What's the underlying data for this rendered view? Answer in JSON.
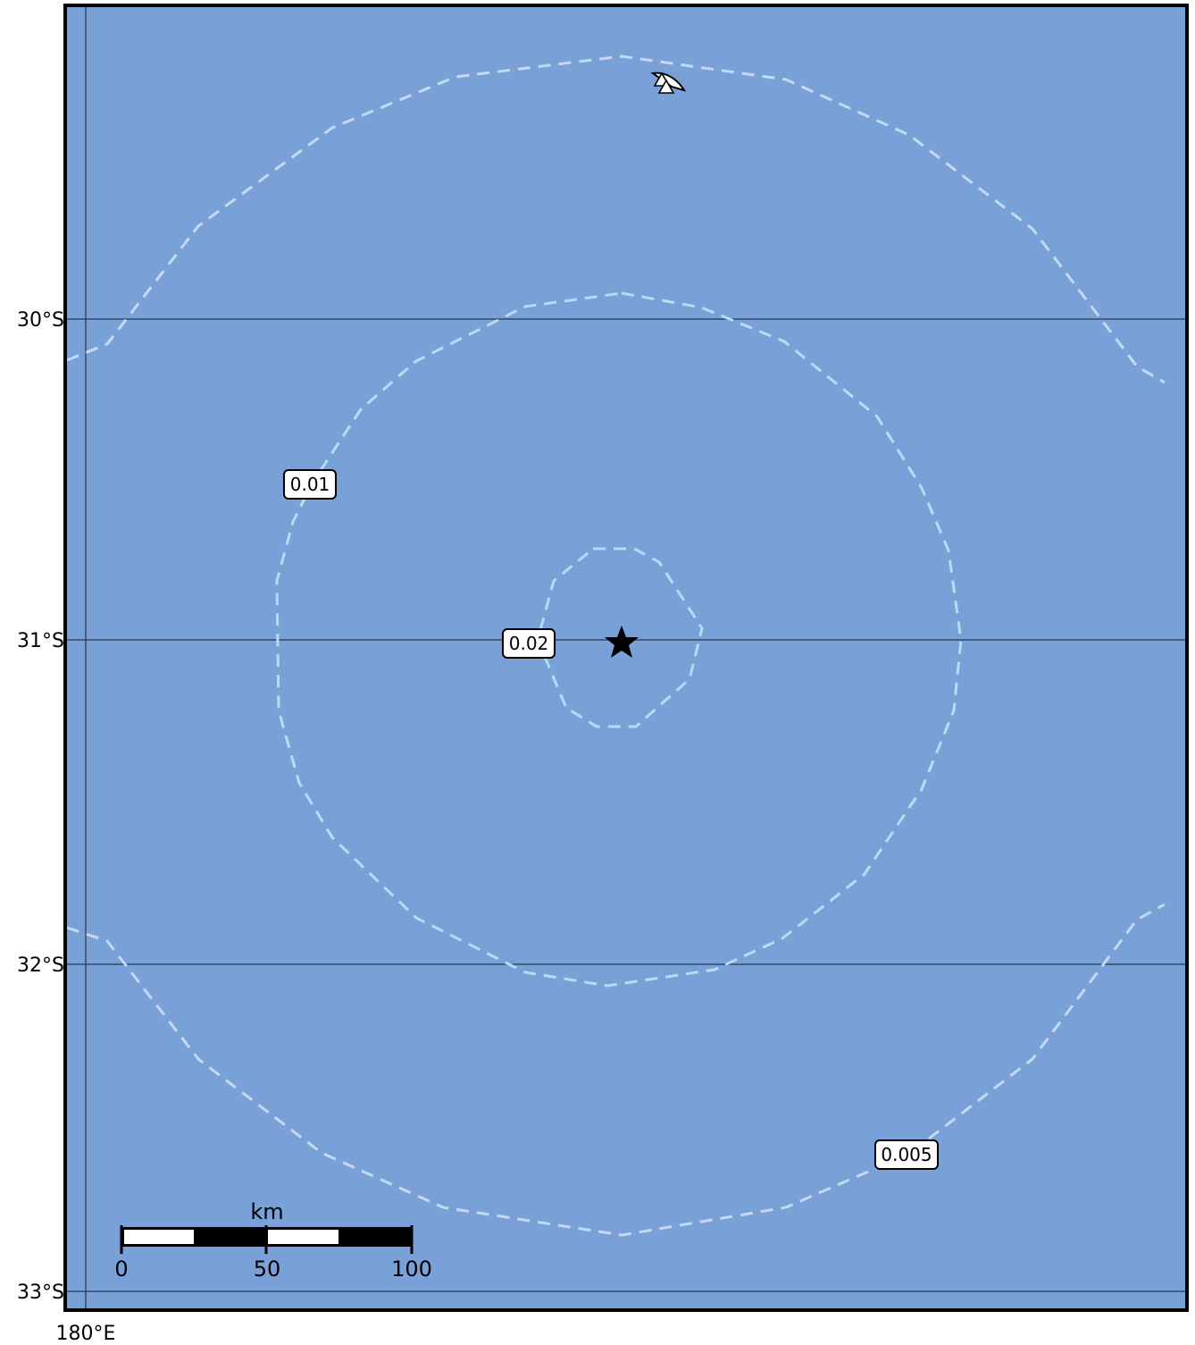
{
  "map": {
    "ocean_color": "#7aa0d8",
    "contour_color_outer": "#c6d8f2",
    "contour_color_inner": "#aee0f5",
    "latitude_labels": [
      "30°S",
      "31°S",
      "32°S",
      "33°S"
    ],
    "longitude_labels": [
      "180°E"
    ],
    "contour_labels": [
      {
        "value": "0.01"
      },
      {
        "value": "0.02"
      },
      {
        "value": "0.005"
      }
    ],
    "epicenter_icon": "star-icon",
    "station_icon": "triangle-station-icon",
    "scale_bar": {
      "unit": "km",
      "ticks": [
        "0",
        "50",
        "100"
      ]
    }
  }
}
